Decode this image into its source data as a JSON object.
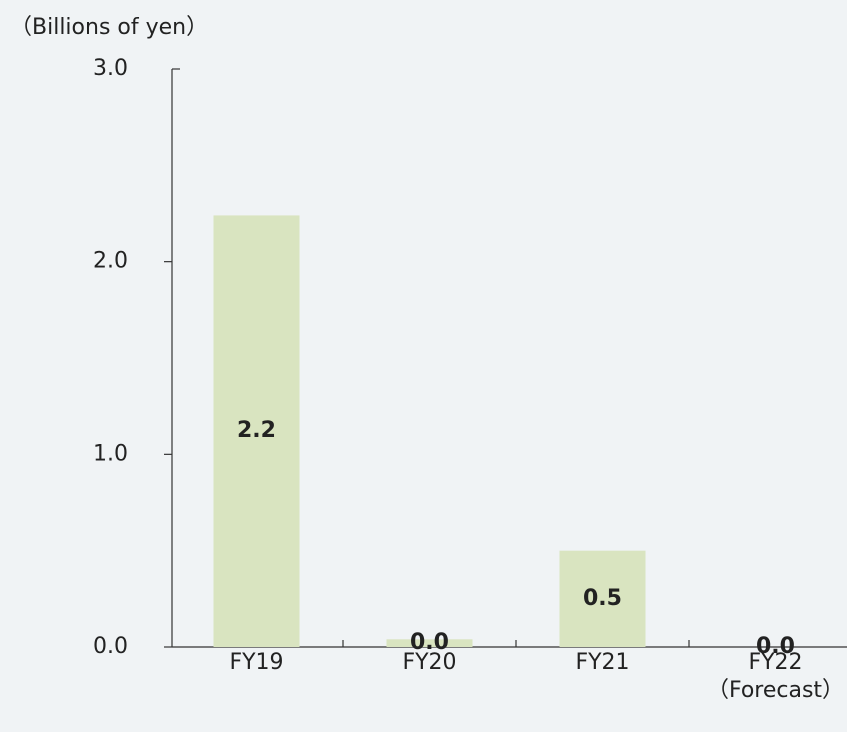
{
  "chart_data": {
    "type": "bar",
    "y_axis_label": "（Billions of yen）",
    "categories": [
      "FY19",
      "FY20",
      "FY21",
      "FY22\n（Forecast）"
    ],
    "values": [
      2.24,
      0.04,
      0.5,
      0
    ],
    "value_labels": [
      "2.2",
      "0.0",
      "0.5",
      "0.0"
    ],
    "color": "#d9e4c0",
    "ylim": [
      0,
      3
    ],
    "yticks": [
      {
        "value": 0,
        "label": "0.0"
      },
      {
        "value": 1,
        "label": "1.0"
      },
      {
        "value": 2,
        "label": "2.0"
      },
      {
        "value": 3,
        "label": "3.0"
      }
    ],
    "grid": false
  }
}
